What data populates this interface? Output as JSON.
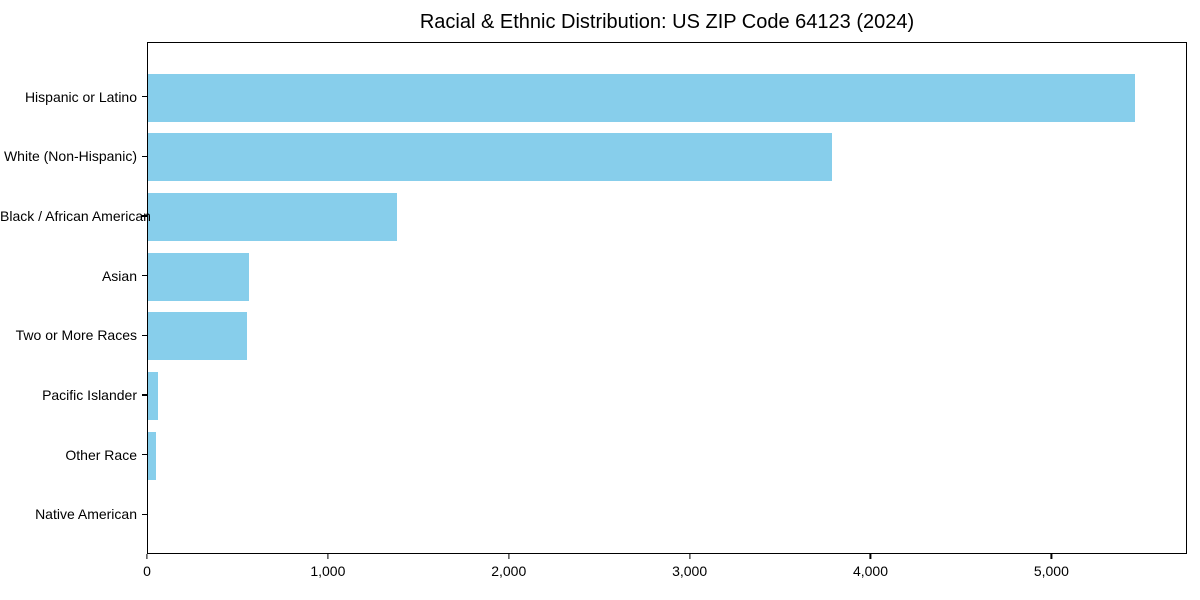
{
  "chart_data": {
    "type": "bar",
    "orientation": "horizontal",
    "title": "Racial & Ethnic Distribution: US ZIP Code 64123 (2024)",
    "xlabel": "",
    "ylabel": "",
    "categories": [
      "Hispanic or Latino",
      "White (Non-Hispanic)",
      "Black / African American",
      "Asian",
      "Two or More Races",
      "Pacific Islander",
      "Other Race",
      "Native American"
    ],
    "values": [
      5470,
      3790,
      1380,
      560,
      550,
      55,
      45,
      0
    ],
    "xlim": [
      0,
      5750
    ],
    "x_ticks": [
      0,
      1000,
      2000,
      3000,
      4000,
      5000
    ],
    "x_tick_labels": [
      "0",
      "1,000",
      "2,000",
      "3,000",
      "4,000",
      "5,000"
    ],
    "bar_color": "#87CEEB",
    "axis_color": "#000000",
    "text_color": "#000000",
    "background_color": "#ffffff",
    "grid": false,
    "legend": null
  }
}
